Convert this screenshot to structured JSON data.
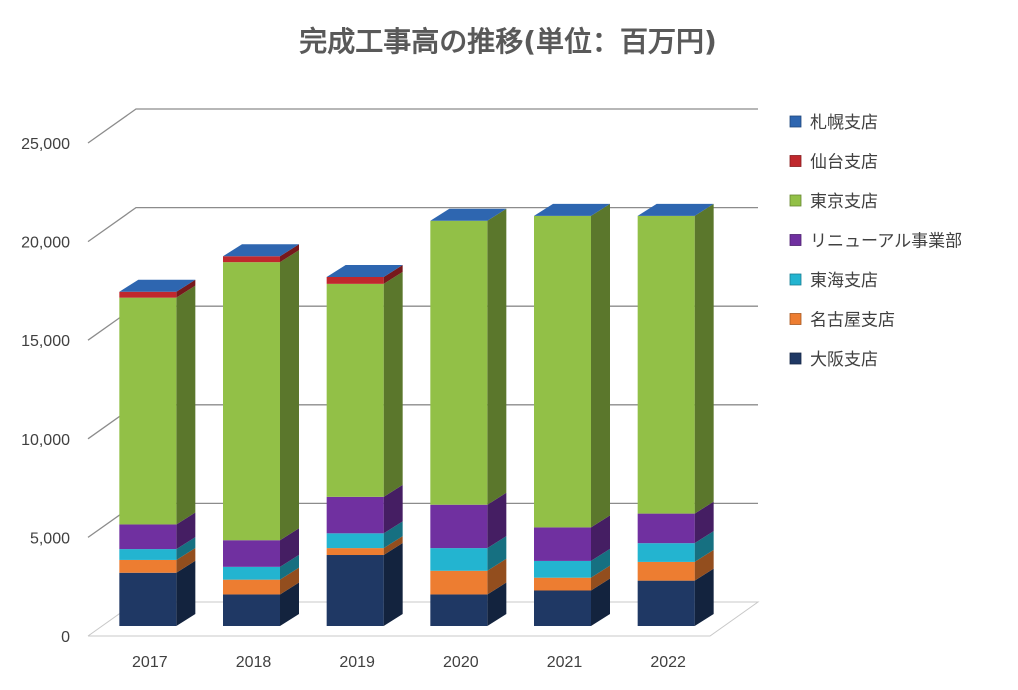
{
  "chart_data": {
    "type": "bar",
    "stacked": true,
    "three_d": true,
    "title": "完成工事高の推移(単位：百万円)",
    "xlabel": "",
    "ylabel": "",
    "ylim": [
      0,
      25000
    ],
    "y_ticks": [
      "0",
      "5,000",
      "10,000",
      "15,000",
      "20,000",
      "25,000"
    ],
    "y_tick_values": [
      0,
      5000,
      10000,
      15000,
      20000,
      25000
    ],
    "grid": true,
    "legend_position": "right",
    "categories": [
      "2017",
      "2018",
      "2019",
      "2020",
      "2021",
      "2022"
    ],
    "series": [
      {
        "name": "大阪支店",
        "color": "#1F3864",
        "values": [
          2700,
          1600,
          3600,
          1600,
          1800,
          2300
        ]
      },
      {
        "name": "名古屋支店",
        "color": "#ED7D31",
        "values": [
          650,
          750,
          350,
          1200,
          650,
          950
        ]
      },
      {
        "name": "東海支店",
        "color": "#23B4D0",
        "values": [
          550,
          650,
          750,
          1150,
          850,
          950
        ]
      },
      {
        "name": "リニューアル事業部",
        "color": "#7030A0",
        "values": [
          1250,
          1350,
          1850,
          2200,
          1700,
          1500
        ]
      },
      {
        "name": "東京支店",
        "color": "#92C047",
        "values": [
          11500,
          14100,
          10800,
          14400,
          15800,
          15100
        ]
      },
      {
        "name": "仙台支店",
        "color": "#C0282D",
        "values": [
          300,
          300,
          350,
          0,
          0,
          0
        ]
      },
      {
        "name": "札幌支店",
        "color": "#2E66B0",
        "values": [
          0,
          0,
          0,
          0,
          0,
          0
        ]
      }
    ],
    "legend_order": [
      "札幌支店",
      "仙台支店",
      "東京支店",
      "リニューアル事業部",
      "東海支店",
      "名古屋支店",
      "大阪支店"
    ]
  }
}
